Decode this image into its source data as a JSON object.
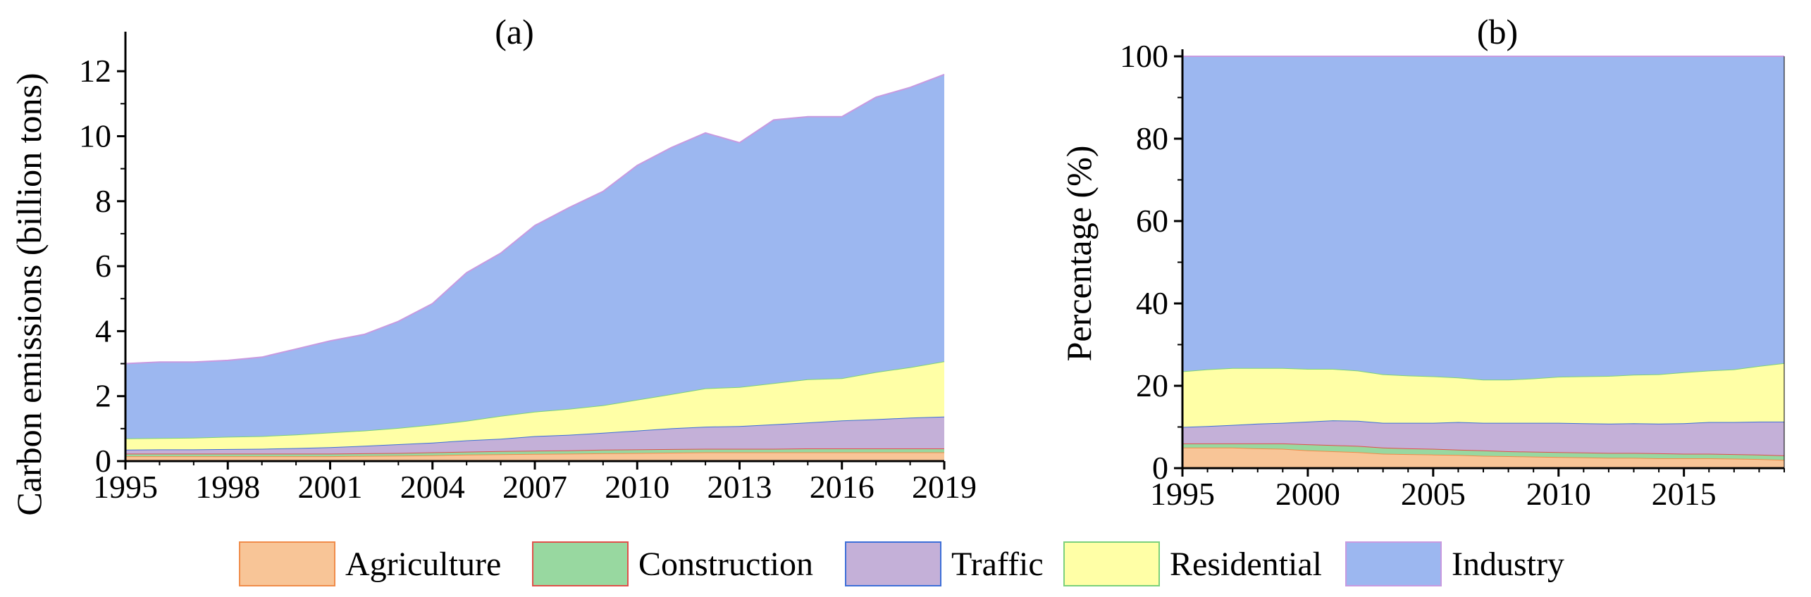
{
  "colors": {
    "Agriculture": {
      "fill": "#F8C597",
      "edge": "#F08C4A"
    },
    "Construction": {
      "fill": "#98D8A0",
      "edge": "#E0504A"
    },
    "Traffic": {
      "fill": "#C4B0D8",
      "edge": "#3D6FD8"
    },
    "Residential": {
      "fill": "#FFFFA6",
      "edge": "#7BD17B"
    },
    "Industry": {
      "fill": "#9CB7F0",
      "edge": "#C89AE0"
    }
  },
  "legend": {
    "items": [
      "Agriculture",
      "Construction",
      "Traffic",
      "Residential",
      "Industry"
    ]
  },
  "chart_data": [
    {
      "type": "area",
      "stacked": true,
      "title": "(a)",
      "xlabel": "",
      "ylabel": "Carbon emissions (billion tons)",
      "xlim": [
        1995,
        2019
      ],
      "ylim": [
        0,
        13
      ],
      "x_ticks": [
        1995,
        1998,
        2001,
        2004,
        2007,
        2010,
        2013,
        2016,
        2019
      ],
      "y_ticks": [
        0,
        2,
        4,
        6,
        8,
        10,
        12
      ],
      "x": [
        1995,
        1996,
        1997,
        1998,
        1999,
        2000,
        2001,
        2002,
        2003,
        2004,
        2005,
        2006,
        2007,
        2008,
        2009,
        2010,
        2011,
        2012,
        2013,
        2014,
        2015,
        2016,
        2017,
        2018,
        2019
      ],
      "series": [
        {
          "name": "Agriculture",
          "values": [
            0.15,
            0.15,
            0.15,
            0.15,
            0.15,
            0.15,
            0.15,
            0.16,
            0.17,
            0.18,
            0.2,
            0.21,
            0.22,
            0.23,
            0.24,
            0.25,
            0.26,
            0.27,
            0.27,
            0.27,
            0.27,
            0.27,
            0.27,
            0.27,
            0.27
          ]
        },
        {
          "name": "Construction",
          "values": [
            0.08,
            0.08,
            0.08,
            0.08,
            0.08,
            0.08,
            0.08,
            0.08,
            0.08,
            0.09,
            0.09,
            0.1,
            0.1,
            0.1,
            0.11,
            0.11,
            0.11,
            0.11,
            0.11,
            0.11,
            0.12,
            0.12,
            0.12,
            0.12,
            0.12
          ]
        },
        {
          "name": "Traffic",
          "values": [
            0.12,
            0.13,
            0.13,
            0.14,
            0.15,
            0.17,
            0.2,
            0.23,
            0.27,
            0.3,
            0.35,
            0.38,
            0.45,
            0.48,
            0.52,
            0.58,
            0.64,
            0.68,
            0.7,
            0.75,
            0.8,
            0.86,
            0.9,
            0.95,
            0.98
          ]
        },
        {
          "name": "Residential",
          "values": [
            0.35,
            0.35,
            0.36,
            0.38,
            0.39,
            0.42,
            0.45,
            0.47,
            0.5,
            0.55,
            0.6,
            0.7,
            0.75,
            0.8,
            0.85,
            0.95,
            1.05,
            1.18,
            1.2,
            1.27,
            1.33,
            1.3,
            1.45,
            1.55,
            1.7
          ]
        },
        {
          "name": "Industry",
          "values": [
            2.3,
            2.34,
            2.33,
            2.35,
            2.43,
            2.63,
            2.82,
            2.96,
            3.28,
            3.73,
            4.56,
            5.01,
            5.73,
            6.19,
            6.58,
            7.21,
            7.59,
            7.86,
            7.52,
            8.1,
            8.08,
            8.05,
            8.46,
            8.61,
            8.83
          ]
        }
      ]
    },
    {
      "type": "area",
      "stacked": true,
      "title": "(b)",
      "xlabel": "",
      "ylabel": "Percentage (%)",
      "xlim": [
        1995,
        2019
      ],
      "ylim": [
        0,
        100
      ],
      "x_ticks": [
        1995,
        2000,
        2005,
        2010,
        2015
      ],
      "y_ticks": [
        0,
        20,
        40,
        60,
        80,
        100
      ],
      "x": [
        1995,
        1996,
        1997,
        1998,
        1999,
        2000,
        2001,
        2002,
        2003,
        2004,
        2005,
        2006,
        2007,
        2008,
        2009,
        2010,
        2011,
        2012,
        2013,
        2014,
        2015,
        2016,
        2017,
        2018,
        2019
      ],
      "series": [
        {
          "name": "Agriculture",
          "values": [
            5,
            5,
            5,
            4.8,
            4.7,
            4.3,
            4.1,
            3.9,
            3.5,
            3.4,
            3.3,
            3.2,
            3,
            2.9,
            2.8,
            2.7,
            2.6,
            2.5,
            2.5,
            2.4,
            2.4,
            2.4,
            2.3,
            2.2,
            2
          ]
        },
        {
          "name": "Construction",
          "values": [
            1,
            1,
            1,
            1.2,
            1.3,
            1.5,
            1.5,
            1.5,
            1.5,
            1.4,
            1.4,
            1.3,
            1.3,
            1.2,
            1.2,
            1.2,
            1.2,
            1.2,
            1.2,
            1.2,
            1.1,
            1.1,
            1.1,
            1.1,
            1.1
          ]
        },
        {
          "name": "Traffic",
          "values": [
            4,
            4.2,
            4.5,
            4.8,
            5,
            5.5,
            6,
            6.1,
            6,
            6.2,
            6.3,
            6.7,
            6.7,
            6.9,
            7,
            7.1,
            7.1,
            7.1,
            7.2,
            7.2,
            7.4,
            7.7,
            7.8,
            8,
            8.2
          ]
        },
        {
          "name": "Residential",
          "values": [
            13.5,
            13.8,
            13.8,
            13.5,
            13.3,
            12.8,
            12.5,
            12.2,
            11.8,
            11.5,
            11.3,
            10.8,
            10.5,
            10.5,
            10.8,
            11.2,
            11.4,
            11.6,
            11.8,
            12,
            12.4,
            12.5,
            12.8,
            13.5,
            14.2
          ]
        },
        {
          "name": "Industry",
          "values": [
            76.5,
            76,
            75.7,
            75.7,
            75.7,
            75.9,
            75.9,
            76.3,
            77.2,
            77.5,
            77.7,
            78,
            78.5,
            78.5,
            78.2,
            77.8,
            77.7,
            77.6,
            77.3,
            77.2,
            76.7,
            76.3,
            76,
            75.2,
            74.5
          ]
        }
      ]
    }
  ]
}
